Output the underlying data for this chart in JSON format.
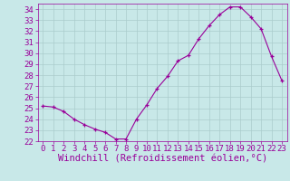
{
  "x": [
    0,
    1,
    2,
    3,
    4,
    5,
    6,
    7,
    8,
    9,
    10,
    11,
    12,
    13,
    14,
    15,
    16,
    17,
    18,
    19,
    20,
    21,
    22,
    23
  ],
  "y": [
    25.2,
    25.1,
    24.7,
    24.0,
    23.5,
    23.1,
    22.8,
    22.2,
    22.2,
    24.0,
    25.3,
    26.8,
    27.9,
    29.3,
    29.8,
    31.3,
    32.5,
    33.5,
    34.2,
    34.2,
    33.3,
    32.2,
    29.7,
    27.5
  ],
  "line_color": "#990099",
  "marker_color": "#990099",
  "bg_color": "#c8e8e8",
  "grid_color": "#aacccc",
  "xlabel": "Windchill (Refroidissement éolien,°C)",
  "xlim": [
    -0.5,
    23.5
  ],
  "ylim": [
    22,
    34.5
  ],
  "yticks": [
    22,
    23,
    24,
    25,
    26,
    27,
    28,
    29,
    30,
    31,
    32,
    33,
    34
  ],
  "xticks": [
    0,
    1,
    2,
    3,
    4,
    5,
    6,
    7,
    8,
    9,
    10,
    11,
    12,
    13,
    14,
    15,
    16,
    17,
    18,
    19,
    20,
    21,
    22,
    23
  ],
  "tick_color": "#990099",
  "tick_fontsize": 6.5,
  "xlabel_fontsize": 7.5
}
